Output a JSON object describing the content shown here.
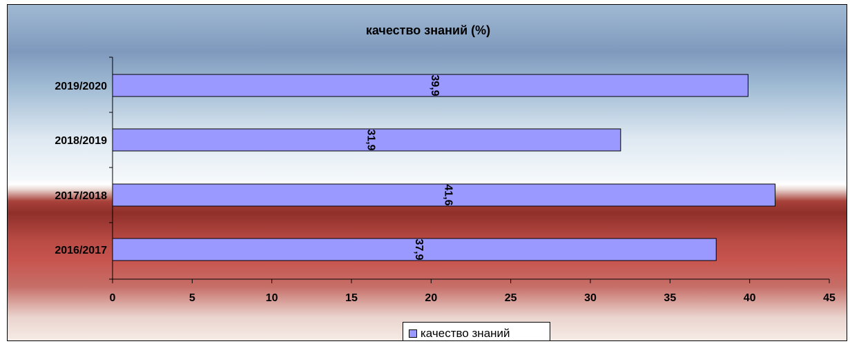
{
  "chart_data": {
    "type": "bar",
    "orientation": "horizontal",
    "title": "качество знаний (%)",
    "categories": [
      "2016/2017",
      "2017/2018",
      "2018/2019",
      "2019/2020"
    ],
    "series": [
      {
        "name": "качество знаний",
        "values": [
          37.9,
          41.6,
          31.9,
          39.9
        ],
        "data_labels": [
          "37,9",
          "41,6",
          "31,9",
          "39,9"
        ],
        "color": "#9999ff"
      }
    ],
    "x_ticks": [
      "0",
      "5",
      "10",
      "15",
      "20",
      "25",
      "30",
      "35",
      "40",
      "45"
    ],
    "xlim": [
      0,
      45
    ],
    "grid": false,
    "legend_position": "bottom"
  }
}
